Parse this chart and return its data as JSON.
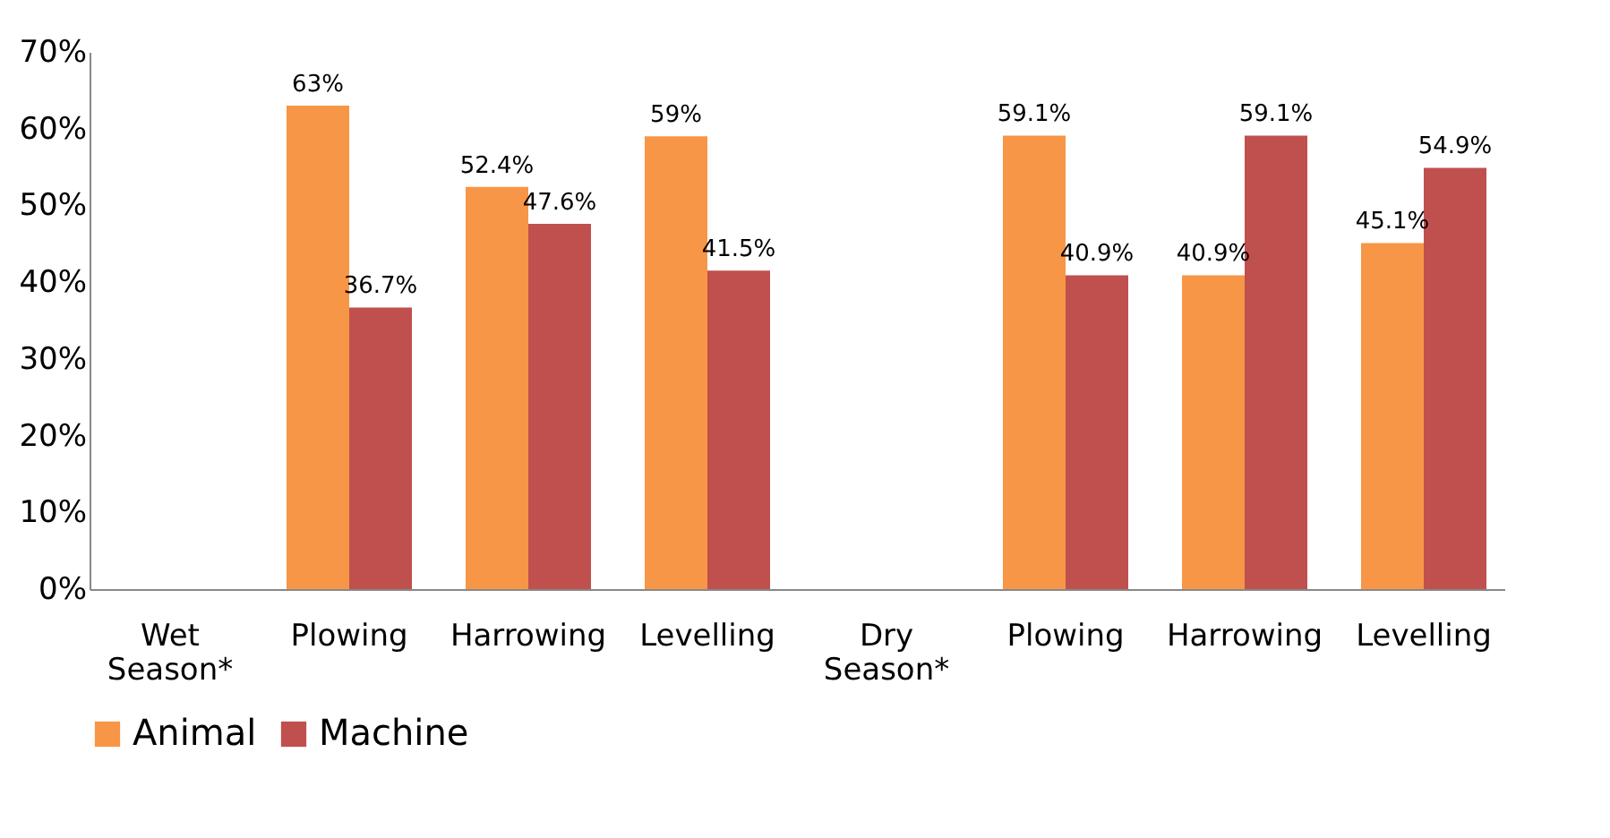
{
  "chart_data": {
    "type": "bar",
    "categories": [
      "Wet Season*",
      "Plowing",
      "Harrowing",
      "Levelling",
      "Dry Season*",
      "Plowing",
      "Harrowing",
      "Levelling"
    ],
    "series": [
      {
        "name": "Animal",
        "color": "#f79646",
        "values": [
          null,
          63,
          52.4,
          59,
          null,
          59.1,
          40.9,
          45.1
        ],
        "value_labels": [
          null,
          "63%",
          "52.4%",
          "59%",
          null,
          "59.1%",
          "40.9%",
          "45.1%"
        ]
      },
      {
        "name": "Machine",
        "color": "#c0504d",
        "values": [
          null,
          36.7,
          47.6,
          41.5,
          null,
          40.9,
          59.1,
          54.9
        ],
        "value_labels": [
          null,
          "36.7%",
          "47.6%",
          "41.5%",
          null,
          "40.9%",
          "59.1%",
          "54.9%"
        ]
      }
    ],
    "ylim": [
      0,
      70
    ],
    "yticks": [
      {
        "value": 0,
        "label": "0%"
      },
      {
        "value": 10,
        "label": "10%"
      },
      {
        "value": 20,
        "label": "20%"
      },
      {
        "value": 30,
        "label": "30%"
      },
      {
        "value": 40,
        "label": "40%"
      },
      {
        "value": 50,
        "label": "50%"
      },
      {
        "value": 60,
        "label": "60%"
      },
      {
        "value": 70,
        "label": "70%"
      }
    ],
    "grid": false,
    "legend": "bottom"
  }
}
